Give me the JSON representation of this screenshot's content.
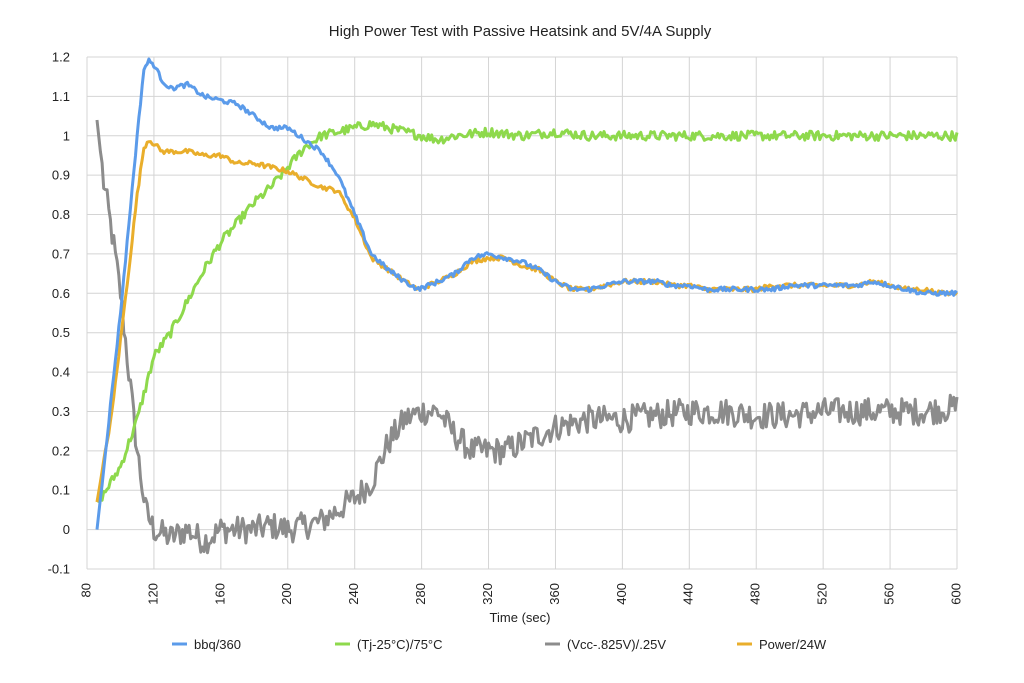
{
  "chart_data": {
    "type": "line",
    "title": "High Power Test with Passive Heatsink and 5V/4A Supply",
    "xlabel": "Time (sec)",
    "ylabel": "",
    "xlim": [
      80,
      600
    ],
    "ylim": [
      -0.1,
      1.2
    ],
    "x_ticks": [
      "80",
      "120",
      "160",
      "200",
      "240",
      "280",
      "320",
      "360",
      "400",
      "440",
      "480",
      "520",
      "560",
      "600"
    ],
    "y_ticks": [
      "1.2",
      "1.1",
      "1",
      "0.9",
      "0.8",
      "0.7",
      "0.6",
      "0.5",
      "0.4",
      "0.3",
      "0.2",
      "0.1",
      "0",
      "-0.1"
    ],
    "grid": true,
    "legend_position": "bottom",
    "series": [
      {
        "name": "bbq/360",
        "color": "#5B9BEA",
        "noise": 0.006,
        "points": [
          [
            86,
            0.0
          ],
          [
            100,
            0.55
          ],
          [
            110,
            1.0
          ],
          [
            114,
            1.17
          ],
          [
            117,
            1.19
          ],
          [
            120,
            1.18
          ],
          [
            125,
            1.14
          ],
          [
            130,
            1.12
          ],
          [
            140,
            1.13
          ],
          [
            150,
            1.1
          ],
          [
            160,
            1.09
          ],
          [
            170,
            1.08
          ],
          [
            180,
            1.05
          ],
          [
            190,
            1.02
          ],
          [
            200,
            1.02
          ],
          [
            210,
            0.99
          ],
          [
            220,
            0.96
          ],
          [
            230,
            0.9
          ],
          [
            240,
            0.8
          ],
          [
            250,
            0.7
          ],
          [
            260,
            0.66
          ],
          [
            270,
            0.63
          ],
          [
            278,
            0.61
          ],
          [
            290,
            0.63
          ],
          [
            300,
            0.65
          ],
          [
            310,
            0.69
          ],
          [
            320,
            0.7
          ],
          [
            330,
            0.69
          ],
          [
            340,
            0.68
          ],
          [
            350,
            0.66
          ],
          [
            360,
            0.63
          ],
          [
            370,
            0.61
          ],
          [
            380,
            0.61
          ],
          [
            390,
            0.62
          ],
          [
            400,
            0.63
          ],
          [
            410,
            0.63
          ],
          [
            420,
            0.63
          ],
          [
            430,
            0.62
          ],
          [
            440,
            0.62
          ],
          [
            450,
            0.61
          ],
          [
            460,
            0.61
          ],
          [
            470,
            0.61
          ],
          [
            480,
            0.61
          ],
          [
            490,
            0.61
          ],
          [
            500,
            0.62
          ],
          [
            510,
            0.62
          ],
          [
            520,
            0.62
          ],
          [
            530,
            0.62
          ],
          [
            540,
            0.62
          ],
          [
            550,
            0.63
          ],
          [
            560,
            0.62
          ],
          [
            570,
            0.61
          ],
          [
            580,
            0.6
          ],
          [
            590,
            0.6
          ],
          [
            600,
            0.6
          ]
        ]
      },
      {
        "name": "(Tj-25°C)/75°C",
        "color": "#8ED94C",
        "noise": 0.012,
        "points": [
          [
            86,
            0.07
          ],
          [
            90,
            0.09
          ],
          [
            100,
            0.16
          ],
          [
            110,
            0.28
          ],
          [
            120,
            0.44
          ],
          [
            130,
            0.5
          ],
          [
            140,
            0.58
          ],
          [
            150,
            0.66
          ],
          [
            160,
            0.73
          ],
          [
            170,
            0.78
          ],
          [
            180,
            0.83
          ],
          [
            190,
            0.87
          ],
          [
            200,
            0.92
          ],
          [
            210,
            0.97
          ],
          [
            220,
            1.0
          ],
          [
            230,
            1.01
          ],
          [
            240,
            1.02
          ],
          [
            250,
            1.03
          ],
          [
            260,
            1.02
          ],
          [
            270,
            1.01
          ],
          [
            280,
            1.0
          ],
          [
            290,
            0.99
          ],
          [
            300,
            1.0
          ],
          [
            320,
            1.01
          ],
          [
            340,
            1.0
          ],
          [
            360,
            1.01
          ],
          [
            380,
            1.0
          ],
          [
            400,
            1.0
          ],
          [
            420,
            1.0
          ],
          [
            440,
            1.0
          ],
          [
            460,
            1.0
          ],
          [
            480,
            1.0
          ],
          [
            500,
            1.0
          ],
          [
            520,
            1.0
          ],
          [
            540,
            1.0
          ],
          [
            560,
            1.0
          ],
          [
            580,
            1.0
          ],
          [
            600,
            1.0
          ]
        ]
      },
      {
        "name": "(Vcc-.825V)/.25V",
        "color": "#8C8C8C",
        "noise": 0.035,
        "points": [
          [
            86,
            1.04
          ],
          [
            90,
            0.88
          ],
          [
            95,
            0.75
          ],
          [
            100,
            0.6
          ],
          [
            105,
            0.4
          ],
          [
            110,
            0.2
          ],
          [
            115,
            0.05
          ],
          [
            120,
            0.0
          ],
          [
            130,
            -0.02
          ],
          [
            140,
            0.0
          ],
          [
            150,
            -0.03
          ],
          [
            160,
            0.0
          ],
          [
            170,
            0.0
          ],
          [
            180,
            0.0
          ],
          [
            190,
            0.01
          ],
          [
            200,
            0.0
          ],
          [
            210,
            0.01
          ],
          [
            220,
            0.02
          ],
          [
            230,
            0.05
          ],
          [
            240,
            0.08
          ],
          [
            250,
            0.12
          ],
          [
            260,
            0.22
          ],
          [
            270,
            0.28
          ],
          [
            280,
            0.3
          ],
          [
            290,
            0.3
          ],
          [
            300,
            0.24
          ],
          [
            310,
            0.2
          ],
          [
            320,
            0.2
          ],
          [
            330,
            0.2
          ],
          [
            340,
            0.22
          ],
          [
            350,
            0.24
          ],
          [
            360,
            0.26
          ],
          [
            370,
            0.27
          ],
          [
            380,
            0.28
          ],
          [
            400,
            0.28
          ],
          [
            420,
            0.29
          ],
          [
            440,
            0.3
          ],
          [
            460,
            0.3
          ],
          [
            480,
            0.29
          ],
          [
            500,
            0.29
          ],
          [
            520,
            0.3
          ],
          [
            540,
            0.3
          ],
          [
            560,
            0.3
          ],
          [
            580,
            0.3
          ],
          [
            600,
            0.31
          ]
        ]
      },
      {
        "name": "Power/24W",
        "color": "#E9AE2B",
        "noise": 0.006,
        "points": [
          [
            86,
            0.07
          ],
          [
            95,
            0.3
          ],
          [
            105,
            0.66
          ],
          [
            110,
            0.85
          ],
          [
            114,
            0.97
          ],
          [
            117,
            0.99
          ],
          [
            120,
            0.98
          ],
          [
            125,
            0.96
          ],
          [
            140,
            0.96
          ],
          [
            150,
            0.95
          ],
          [
            160,
            0.95
          ],
          [
            170,
            0.93
          ],
          [
            180,
            0.93
          ],
          [
            190,
            0.92
          ],
          [
            200,
            0.91
          ],
          [
            210,
            0.89
          ],
          [
            220,
            0.87
          ],
          [
            230,
            0.86
          ],
          [
            240,
            0.79
          ],
          [
            250,
            0.69
          ],
          [
            260,
            0.66
          ],
          [
            270,
            0.63
          ],
          [
            278,
            0.61
          ],
          [
            290,
            0.63
          ],
          [
            300,
            0.65
          ],
          [
            310,
            0.68
          ],
          [
            320,
            0.69
          ],
          [
            330,
            0.69
          ],
          [
            340,
            0.67
          ],
          [
            350,
            0.66
          ],
          [
            360,
            0.63
          ],
          [
            370,
            0.61
          ],
          [
            380,
            0.61
          ],
          [
            390,
            0.62
          ],
          [
            400,
            0.63
          ],
          [
            410,
            0.63
          ],
          [
            420,
            0.63
          ],
          [
            430,
            0.62
          ],
          [
            440,
            0.62
          ],
          [
            450,
            0.61
          ],
          [
            460,
            0.61
          ],
          [
            470,
            0.61
          ],
          [
            480,
            0.61
          ],
          [
            490,
            0.62
          ],
          [
            500,
            0.62
          ],
          [
            510,
            0.62
          ],
          [
            520,
            0.62
          ],
          [
            530,
            0.62
          ],
          [
            540,
            0.62
          ],
          [
            550,
            0.63
          ],
          [
            560,
            0.62
          ],
          [
            570,
            0.61
          ],
          [
            580,
            0.61
          ],
          [
            590,
            0.6
          ],
          [
            600,
            0.6
          ]
        ]
      }
    ]
  }
}
